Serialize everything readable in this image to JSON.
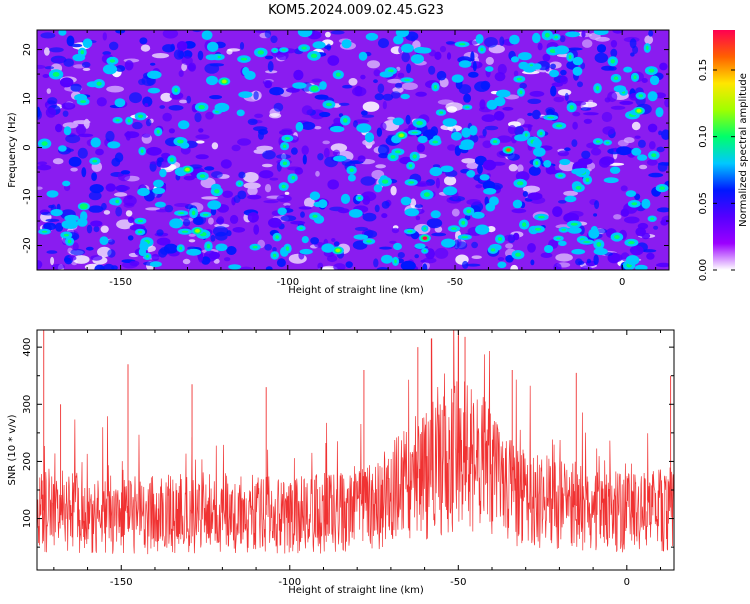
{
  "title": "KOM5.2024.009.02.45.G23",
  "colors": {
    "snr_line": "#f03232",
    "colormap": [
      "#ffffff",
      "#9b00ff",
      "#5500ff",
      "#0018ff",
      "#00c8ff",
      "#00ff6a",
      "#a0ff00",
      "#ffe600",
      "#ff6000",
      "#ff0050"
    ]
  },
  "chart_data": [
    {
      "type": "heatmap",
      "title": "",
      "xlabel": "Height of straight line (km)",
      "ylabel": "Frequency (Hz)",
      "xlim": [
        -175,
        14
      ],
      "ylim": [
        -25,
        24
      ],
      "x_ticks": [
        -150,
        -100,
        -50,
        0
      ],
      "y_ticks": [
        -20,
        -10,
        0,
        10,
        20
      ],
      "colorbar": {
        "label": "Normalized spectral amplitude",
        "range": [
          0,
          0.18
        ],
        "ticks": [
          0.0,
          0.05,
          0.1,
          0.15
        ]
      },
      "notes": "Noise-like field, mostly violet/blue (~0.02-0.06) with scattered cyan/green blobs (~0.07-0.10) and a few yellow/orange/red spots (~0.13-0.17)",
      "hot_spots": [
        {
          "x": -59,
          "y": -18.5,
          "value": 0.17
        },
        {
          "x": -34,
          "y": -0.5,
          "value": 0.15
        },
        {
          "x": -66,
          "y": 2.5,
          "value": 0.12
        },
        {
          "x": -119,
          "y": 13.5,
          "value": 0.11
        },
        {
          "x": -127,
          "y": -17,
          "value": 0.12
        },
        {
          "x": -130,
          "y": -4.5,
          "value": 0.12
        },
        {
          "x": 5,
          "y": 7.5,
          "value": 0.12
        },
        {
          "x": -161,
          "y": -12,
          "value": 0.1
        },
        {
          "x": -92,
          "y": 12,
          "value": 0.1
        },
        {
          "x": -85,
          "y": -21,
          "value": 0.11
        }
      ]
    },
    {
      "type": "line",
      "title": "",
      "xlabel": "Height of straight line (km)",
      "ylabel": "SNR (10 * v/v)",
      "xlim": [
        -175,
        14
      ],
      "ylim": [
        10,
        430
      ],
      "x_ticks": [
        -150,
        -100,
        -50,
        0
      ],
      "y_ticks": [
        100,
        200,
        300,
        400
      ],
      "notes": "Dense noisy SNR trace, baseline ~100-130 with spikes to 250-380; elevated envelope near -60 to -45 km reaching ~420",
      "envelope": {
        "x": [
          -175,
          -150,
          -125,
          -100,
          -75,
          -65,
          -55,
          -50,
          -45,
          -35,
          -25,
          0,
          14
        ],
        "y": [
          115,
          105,
          110,
          105,
          120,
          160,
          195,
          215,
          200,
          150,
          130,
          110,
          120
        ]
      },
      "peaks": [
        {
          "x": -173,
          "y": 430
        },
        {
          "x": -168,
          "y": 300
        },
        {
          "x": -148,
          "y": 370
        },
        {
          "x": -129,
          "y": 335
        },
        {
          "x": -107,
          "y": 330
        },
        {
          "x": -78,
          "y": 360
        },
        {
          "x": -62,
          "y": 400
        },
        {
          "x": -58,
          "y": 415
        },
        {
          "x": -50,
          "y": 420
        },
        {
          "x": -48,
          "y": 418
        },
        {
          "x": -34,
          "y": 360
        },
        {
          "x": -15,
          "y": 355
        },
        {
          "x": 13,
          "y": 350
        }
      ]
    }
  ]
}
